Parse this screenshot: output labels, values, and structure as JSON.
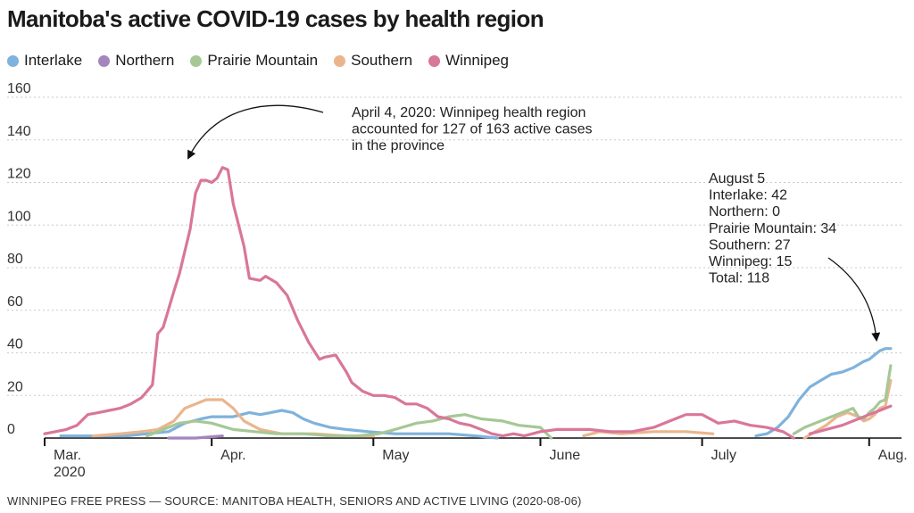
{
  "title": "Manitoba's active COVID-19 cases by health region",
  "source": "WINNIPEG FREE PRESS — SOURCE: MANITOBA HEALTH, SENIORS AND ACTIVE LIVING (2020-08-06)",
  "colors": {
    "Interlake": "#7fb2dc",
    "Northern": "#a585bd",
    "Prairie Mountain": "#a5c896",
    "Southern": "#eab58d",
    "Winnipeg": "#d9769a"
  },
  "chart_data": {
    "type": "line",
    "title": "Manitoba's active COVID-19 cases by health region",
    "xlabel": "",
    "ylabel": "",
    "x_domain": [
      "2020-03-01",
      "2020-08-07"
    ],
    "ylim": [
      0,
      160
    ],
    "y_ticks": [
      0,
      20,
      40,
      60,
      80,
      100,
      120,
      140,
      160
    ],
    "x_ticks": [
      {
        "date": "2020-03-01",
        "label": [
          "Mar.",
          "2020"
        ]
      },
      {
        "date": "2020-04-01",
        "label": [
          "Apr."
        ]
      },
      {
        "date": "2020-05-01",
        "label": [
          "May"
        ]
      },
      {
        "date": "2020-06-01",
        "label": [
          "June"
        ]
      },
      {
        "date": "2020-07-01",
        "label": [
          "July"
        ]
      },
      {
        "date": "2020-08-01",
        "label": [
          "Aug."
        ]
      }
    ],
    "grid": true,
    "legend_position": "top",
    "series": [
      {
        "name": "Interlake",
        "points": [
          [
            "2020-03-04",
            1
          ],
          [
            "2020-03-10",
            1
          ],
          [
            "2020-03-16",
            1
          ],
          [
            "2020-03-20",
            2
          ],
          [
            "2020-03-24",
            3
          ],
          [
            "2020-03-27",
            7
          ],
          [
            "2020-03-30",
            9
          ],
          [
            "2020-04-01",
            10
          ],
          [
            "2020-04-05",
            10
          ],
          [
            "2020-04-08",
            12
          ],
          [
            "2020-04-10",
            11
          ],
          [
            "2020-04-12",
            12
          ],
          [
            "2020-04-14",
            13
          ],
          [
            "2020-04-16",
            12
          ],
          [
            "2020-04-18",
            9
          ],
          [
            "2020-04-20",
            7
          ],
          [
            "2020-04-23",
            5
          ],
          [
            "2020-04-26",
            4
          ],
          [
            "2020-04-30",
            3
          ],
          [
            "2020-05-05",
            2
          ],
          [
            "2020-05-10",
            2
          ],
          [
            "2020-05-15",
            2
          ],
          [
            "2020-05-20",
            1
          ],
          [
            "2020-05-24",
            0
          ],
          null,
          [
            "2020-07-11",
            1
          ],
          [
            "2020-07-13",
            2
          ],
          [
            "2020-07-15",
            5
          ],
          [
            "2020-07-17",
            10
          ],
          [
            "2020-07-19",
            18
          ],
          [
            "2020-07-21",
            24
          ],
          [
            "2020-07-23",
            27
          ],
          [
            "2020-07-25",
            30
          ],
          [
            "2020-07-27",
            31
          ],
          [
            "2020-07-29",
            33
          ],
          [
            "2020-07-31",
            36
          ],
          [
            "2020-08-01",
            37
          ],
          [
            "2020-08-02",
            39
          ],
          [
            "2020-08-03",
            41
          ],
          [
            "2020-08-04",
            42
          ],
          [
            "2020-08-05",
            42
          ]
        ]
      },
      {
        "name": "Northern",
        "points": [
          [
            "2020-03-24",
            0
          ],
          [
            "2020-03-29",
            0
          ],
          [
            "2020-04-03",
            1
          ]
        ]
      },
      {
        "name": "Prairie Mountain",
        "points": [
          [
            "2020-03-20",
            1
          ],
          [
            "2020-03-23",
            4
          ],
          [
            "2020-03-26",
            7
          ],
          [
            "2020-03-29",
            8
          ],
          [
            "2020-04-01",
            7
          ],
          [
            "2020-04-05",
            4
          ],
          [
            "2020-04-09",
            3
          ],
          [
            "2020-04-13",
            2
          ],
          [
            "2020-04-18",
            2
          ],
          [
            "2020-04-23",
            1
          ],
          [
            "2020-04-28",
            1
          ],
          [
            "2020-05-02",
            2
          ],
          [
            "2020-05-05",
            4
          ],
          [
            "2020-05-09",
            7
          ],
          [
            "2020-05-12",
            8
          ],
          [
            "2020-05-15",
            10
          ],
          [
            "2020-05-18",
            11
          ],
          [
            "2020-05-21",
            9
          ],
          [
            "2020-05-25",
            8
          ],
          [
            "2020-05-28",
            6
          ],
          [
            "2020-06-01",
            5
          ],
          [
            "2020-06-03",
            0
          ],
          null,
          [
            "2020-07-18",
            2
          ],
          [
            "2020-07-20",
            5
          ],
          [
            "2020-07-22",
            7
          ],
          [
            "2020-07-24",
            9
          ],
          [
            "2020-07-26",
            11
          ],
          [
            "2020-07-28",
            13
          ],
          [
            "2020-07-29",
            14
          ],
          [
            "2020-07-30",
            10
          ],
          [
            "2020-07-31",
            9
          ],
          [
            "2020-08-01",
            12
          ],
          [
            "2020-08-02",
            14
          ],
          [
            "2020-08-03",
            17
          ],
          [
            "2020-08-04",
            18
          ],
          [
            "2020-08-05",
            34
          ]
        ]
      },
      {
        "name": "Southern",
        "points": [
          [
            "2020-03-10",
            1
          ],
          [
            "2020-03-15",
            2
          ],
          [
            "2020-03-19",
            3
          ],
          [
            "2020-03-22",
            4
          ],
          [
            "2020-03-25",
            8
          ],
          [
            "2020-03-27",
            14
          ],
          [
            "2020-03-29",
            16
          ],
          [
            "2020-03-31",
            18
          ],
          [
            "2020-04-03",
            18
          ],
          [
            "2020-04-05",
            14
          ],
          [
            "2020-04-07",
            8
          ],
          [
            "2020-04-10",
            4
          ],
          [
            "2020-04-14",
            2
          ],
          [
            "2020-04-20",
            2
          ],
          [
            "2020-04-26",
            1
          ],
          [
            "2020-05-01",
            1
          ],
          null,
          [
            "2020-06-09",
            1
          ],
          [
            "2020-06-12",
            3
          ],
          [
            "2020-06-16",
            2
          ],
          [
            "2020-06-22",
            3
          ],
          [
            "2020-06-28",
            3
          ],
          [
            "2020-07-03",
            2
          ],
          null,
          [
            "2020-07-20",
            0
          ],
          [
            "2020-07-22",
            3
          ],
          [
            "2020-07-24",
            6
          ],
          [
            "2020-07-26",
            10
          ],
          [
            "2020-07-28",
            12
          ],
          [
            "2020-07-30",
            10
          ],
          [
            "2020-07-31",
            8
          ],
          [
            "2020-08-01",
            9
          ],
          [
            "2020-08-02",
            11
          ],
          [
            "2020-08-03",
            14
          ],
          [
            "2020-08-04",
            15
          ],
          [
            "2020-08-05",
            27
          ]
        ]
      },
      {
        "name": "Winnipeg",
        "points": [
          [
            "2020-03-01",
            2
          ],
          [
            "2020-03-03",
            3
          ],
          [
            "2020-03-05",
            4
          ],
          [
            "2020-03-07",
            6
          ],
          [
            "2020-03-09",
            11
          ],
          [
            "2020-03-11",
            12
          ],
          [
            "2020-03-13",
            13
          ],
          [
            "2020-03-15",
            14
          ],
          [
            "2020-03-17",
            16
          ],
          [
            "2020-03-19",
            19
          ],
          [
            "2020-03-21",
            25
          ],
          [
            "2020-03-22",
            49
          ],
          [
            "2020-03-23",
            52
          ],
          [
            "2020-03-25",
            69
          ],
          [
            "2020-03-26",
            77
          ],
          [
            "2020-03-28",
            98
          ],
          [
            "2020-03-29",
            115
          ],
          [
            "2020-03-30",
            121
          ],
          [
            "2020-03-31",
            121
          ],
          [
            "2020-04-01",
            120
          ],
          [
            "2020-04-02",
            122
          ],
          [
            "2020-04-03",
            127
          ],
          [
            "2020-04-04",
            126
          ],
          [
            "2020-04-05",
            110
          ],
          [
            "2020-04-07",
            90
          ],
          [
            "2020-04-08",
            75
          ],
          [
            "2020-04-10",
            74
          ],
          [
            "2020-04-11",
            76
          ],
          [
            "2020-04-13",
            73
          ],
          [
            "2020-04-15",
            67
          ],
          [
            "2020-04-17",
            55
          ],
          [
            "2020-04-19",
            45
          ],
          [
            "2020-04-21",
            37
          ],
          [
            "2020-04-22",
            38
          ],
          [
            "2020-04-24",
            39
          ],
          [
            "2020-04-26",
            31
          ],
          [
            "2020-04-27",
            26
          ],
          [
            "2020-04-29",
            22
          ],
          [
            "2020-05-01",
            20
          ],
          [
            "2020-05-03",
            20
          ],
          [
            "2020-05-05",
            19
          ],
          [
            "2020-05-07",
            16
          ],
          [
            "2020-05-09",
            16
          ],
          [
            "2020-05-11",
            14
          ],
          [
            "2020-05-13",
            10
          ],
          [
            "2020-05-15",
            9
          ],
          [
            "2020-05-17",
            7
          ],
          [
            "2020-05-19",
            6
          ],
          [
            "2020-05-21",
            4
          ],
          [
            "2020-05-23",
            2
          ],
          [
            "2020-05-25",
            1
          ],
          [
            "2020-05-27",
            2
          ],
          [
            "2020-05-29",
            1
          ],
          [
            "2020-06-01",
            3
          ],
          [
            "2020-06-04",
            4
          ],
          [
            "2020-06-07",
            4
          ],
          [
            "2020-06-10",
            4
          ],
          [
            "2020-06-14",
            3
          ],
          [
            "2020-06-18",
            3
          ],
          [
            "2020-06-22",
            5
          ],
          [
            "2020-06-25",
            8
          ],
          [
            "2020-06-28",
            11
          ],
          [
            "2020-07-01",
            11
          ],
          [
            "2020-07-04",
            7
          ],
          [
            "2020-07-07",
            8
          ],
          [
            "2020-07-10",
            6
          ],
          [
            "2020-07-13",
            5
          ],
          [
            "2020-07-16",
            3
          ],
          [
            "2020-07-18",
            0
          ],
          null,
          [
            "2020-07-21",
            2
          ],
          [
            "2020-07-24",
            4
          ],
          [
            "2020-07-27",
            6
          ],
          [
            "2020-07-30",
            9
          ],
          [
            "2020-08-01",
            11
          ],
          [
            "2020-08-03",
            13
          ],
          [
            "2020-08-05",
            15
          ]
        ]
      }
    ],
    "annotations": [
      {
        "lines": [
          "April 4, 2020: Winnipeg health region",
          "accounted for 127 of 163 active cases",
          "in the province"
        ]
      },
      {
        "lines": [
          "August 5",
          "Interlake: 42",
          "Northern: 0",
          "Prairie Mountain: 34",
          "Southern: 27",
          "Winnipeg: 15",
          "Total: 118"
        ]
      }
    ]
  }
}
